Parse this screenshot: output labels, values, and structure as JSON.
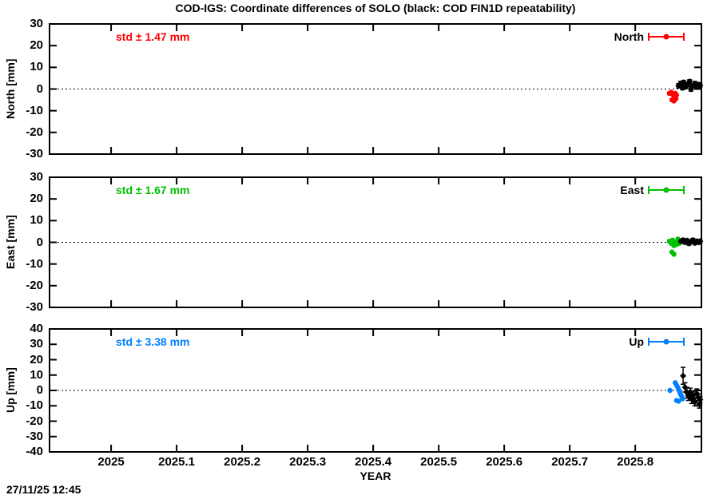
{
  "title": "COD-IGS: Coordinate differences of SOLO (black: COD FIN1D repeatability)",
  "timestamp": "27/11/25 12:45",
  "chart_data": {
    "type": "scatter",
    "xlabel": "YEAR",
    "xlim": [
      2024.906,
      2025.901
    ],
    "xticks": [
      2025,
      2025.1,
      2025.2,
      2025.3,
      2025.4,
      2025.5,
      2025.6,
      2025.7,
      2025.8
    ],
    "xtick_labels": [
      "2025",
      "2025.1",
      "2025.2",
      "2025.3",
      "2025.4",
      "2025.5",
      "2025.6",
      "2025.7",
      "2025.8"
    ],
    "grid": false,
    "zero_line": "dotted",
    "legend_position": "top-right-inside",
    "panels": [
      {
        "name": "North",
        "ylabel": "North [mm]",
        "std_label": "std ± 1.47 mm",
        "legend_label": "North",
        "accent_color": "#ff0000",
        "ylim": [
          -30,
          30
        ],
        "yticks": [
          -30,
          -20,
          -10,
          0,
          10,
          20,
          30
        ],
        "ytick_labels": [
          "-30",
          "-20",
          "-10",
          "0",
          "10",
          "20",
          "30"
        ],
        "series": [
          {
            "name": "COD-IGS difference",
            "color": "#ff0000",
            "marker": "circle",
            "points": [
              [
                2025.852,
                -2.0
              ],
              [
                2025.855,
                -1.5
              ],
              [
                2025.857,
                -2.5
              ],
              [
                2025.859,
                -3.0
              ],
              [
                2025.861,
                -2.0
              ],
              [
                2025.863,
                -2.8
              ],
              [
                2025.856,
                -5.0
              ],
              [
                2025.859,
                -5.5
              ],
              [
                2025.862,
                -4.5
              ]
            ]
          },
          {
            "name": "COD FIN1D repeatability",
            "color": "#000000",
            "marker": "diamond",
            "points": [
              [
                2025.866,
                1.5,
                1.0
              ],
              [
                2025.869,
                2.5,
                1.0
              ],
              [
                2025.872,
                0.5,
                0.8
              ],
              [
                2025.874,
                3.0,
                1.0
              ],
              [
                2025.877,
                1.0,
                0.8
              ],
              [
                2025.88,
                2.0,
                1.0
              ],
              [
                2025.883,
                3.5,
                0.8
              ],
              [
                2025.885,
                0.0,
                1.0
              ],
              [
                2025.888,
                1.5,
                0.8
              ],
              [
                2025.891,
                2.5,
                1.0
              ],
              [
                2025.894,
                1.0,
                0.8
              ],
              [
                2025.897,
                2.0,
                1.0
              ],
              [
                2025.899,
                1.5,
                0.8
              ]
            ]
          }
        ]
      },
      {
        "name": "East",
        "ylabel": "East [mm]",
        "std_label": "std ± 1.67 mm",
        "legend_label": "East",
        "accent_color": "#00c000",
        "ylim": [
          -30,
          30
        ],
        "yticks": [
          -30,
          -20,
          -10,
          0,
          10,
          20,
          30
        ],
        "ytick_labels": [
          "-30",
          "-20",
          "-10",
          "0",
          "10",
          "20",
          "30"
        ],
        "series": [
          {
            "name": "COD-IGS difference",
            "color": "#00c000",
            "marker": "circle",
            "points": [
              [
                2025.852,
                0.5
              ],
              [
                2025.855,
                -0.5
              ],
              [
                2025.857,
                1.0
              ],
              [
                2025.859,
                -1.5
              ],
              [
                2025.861,
                0.0
              ],
              [
                2025.863,
                -1.0
              ],
              [
                2025.865,
                1.5
              ],
              [
                2025.856,
                -4.5
              ],
              [
                2025.859,
                -5.5
              ],
              [
                2025.867,
                -0.5
              ]
            ]
          },
          {
            "name": "COD FIN1D repeatability",
            "color": "#000000",
            "marker": "diamond",
            "points": [
              [
                2025.87,
                0.5,
                0.8
              ],
              [
                2025.873,
                1.0,
                0.8
              ],
              [
                2025.876,
                0.0,
                0.8
              ],
              [
                2025.879,
                0.8,
                0.8
              ],
              [
                2025.882,
                -0.5,
                0.8
              ],
              [
                2025.885,
                0.3,
                0.8
              ],
              [
                2025.888,
                1.0,
                0.8
              ],
              [
                2025.891,
                -0.3,
                0.8
              ],
              [
                2025.894,
                0.5,
                0.8
              ],
              [
                2025.897,
                0.0,
                0.8
              ],
              [
                2025.899,
                0.5,
                0.8
              ]
            ]
          }
        ]
      },
      {
        "name": "Up",
        "ylabel": "Up [mm]",
        "std_label": "std ± 3.38 mm",
        "legend_label": "Up",
        "accent_color": "#0080ff",
        "ylim": [
          -40,
          40
        ],
        "yticks": [
          -40,
          -30,
          -20,
          -10,
          0,
          10,
          20,
          30,
          40
        ],
        "ytick_labels": [
          "-40",
          "-30",
          "-20",
          "-10",
          "0",
          "10",
          "20",
          "30",
          "40"
        ],
        "series": [
          {
            "name": "COD-IGS difference",
            "color": "#0080ff",
            "marker": "circle",
            "points": [
              [
                2025.861,
                5.0
              ],
              [
                2025.863,
                3.5
              ],
              [
                2025.865,
                2.0
              ],
              [
                2025.866,
                0.5
              ],
              [
                2025.868,
                -1.0
              ],
              [
                2025.869,
                -2.5
              ],
              [
                2025.871,
                -4.0
              ],
              [
                2025.872,
                -5.5
              ],
              [
                2025.863,
                -6.5
              ],
              [
                2025.866,
                -7.0
              ],
              [
                2025.853,
                0.0
              ]
            ]
          },
          {
            "name": "COD FIN1D repeatability",
            "color": "#000000",
            "marker": "diamond",
            "points": [
              [
                2025.873,
                9.5,
                5.5
              ],
              [
                2025.876,
                2.0,
                3.0
              ],
              [
                2025.879,
                -1.5,
                3.5
              ],
              [
                2025.881,
                -3.5,
                3.0
              ],
              [
                2025.884,
                -1.0,
                2.5
              ],
              [
                2025.886,
                -5.5,
                3.0
              ],
              [
                2025.889,
                -3.0,
                2.5
              ],
              [
                2025.891,
                -7.5,
                2.5
              ],
              [
                2025.894,
                -2.0,
                3.0
              ],
              [
                2025.896,
                -4.5,
                2.0
              ],
              [
                2025.898,
                -9.0,
                2.5
              ],
              [
                2025.899,
                -6.0,
                2.0
              ]
            ]
          }
        ]
      }
    ]
  }
}
